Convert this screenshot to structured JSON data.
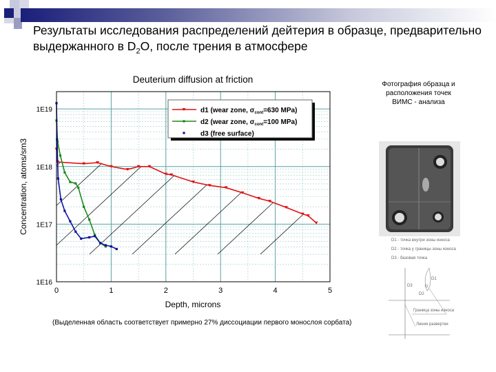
{
  "slide": {
    "title_part1": "Результаты исследования распределений дейтерия в образце, предварительно выдержанного в D",
    "title_sub": "2",
    "title_part2": "O, после трения в атмосфере",
    "note": "(Выделенная область соответствует примерно 27% диссоциации первого монослоя сорбата)",
    "photo_caption": "Фотография образца и расположения точек ВИМС - анализа",
    "diagram_legend": [
      "D1 - точка внутри зоны износа",
      "D2 - точка у границы зоны износа",
      "D3 - базовая точка"
    ],
    "diagram_labels": {
      "d1": "D1",
      "d2": "D2",
      "d3": "D3",
      "boundary": "Граница зоны износа",
      "scan": "Линия развертки"
    },
    "accent_color": "#1a1f7a"
  },
  "chart_data": {
    "type": "line",
    "title": "Deuterium diffusion at friction",
    "xlabel": "Depth, microns",
    "ylabel": "Concentration, atoms/sm3",
    "xlim": [
      0,
      5
    ],
    "ylim": [
      1e+16,
      2e+19
    ],
    "yscale": "log",
    "grid": true,
    "legend_position": "top-right",
    "x_ticks": [
      "0",
      "1",
      "2",
      "3",
      "4",
      "5"
    ],
    "y_ticks": [
      "1E16",
      "1E17",
      "1E18",
      "1E19"
    ],
    "annotation": "hatched region below d1 curve",
    "series": [
      {
        "name": "d1 (wear zone, σcont=630 MPa)",
        "legend_main": "d1 (wear zone, σ",
        "legend_sub": "cont",
        "legend_tail": "=630 MPa)",
        "color": "#e01010",
        "marker": "triangle-down",
        "x": [
          0,
          0.02,
          0.5,
          0.75,
          1.0,
          1.3,
          1.5,
          1.7,
          2.0,
          2.1,
          2.5,
          2.8,
          3.1,
          3.4,
          3.7,
          3.9,
          4.2,
          4.5,
          4.6,
          4.75
        ],
        "y": [
          2e+18,
          1.2e+18,
          1.12e+18,
          1.17e+18,
          1e+18,
          8.9e+17,
          1e+18,
          1e+18,
          7.4e+17,
          7.2e+17,
          5.4e+17,
          4.7e+17,
          4.3e+17,
          3.5e+17,
          2.8e+17,
          2.5e+17,
          1.95e+17,
          1.5e+17,
          1.4e+17,
          1.05e+17
        ]
      },
      {
        "name": "d2 (wear zone, σcont=100 MPa)",
        "legend_main": "d2 (wear zone, σ",
        "legend_sub": "cont",
        "legend_tail": "=100 MPa)",
        "color": "#1a8a1a",
        "marker": "square",
        "x": [
          0,
          0.02,
          0.07,
          0.15,
          0.25,
          0.35,
          0.4,
          0.5,
          0.6,
          0.7,
          0.8,
          0.9
        ],
        "y": [
          6.3e+18,
          2.7e+18,
          1.55e+18,
          7.9e+17,
          5.4e+17,
          5.1e+17,
          4.3e+17,
          2e+17,
          1.2e+17,
          6.5e+16,
          4.7e+16,
          4.1e+16
        ]
      },
      {
        "name": "d3 (free surface)",
        "legend_main": "d3 (free surface)",
        "legend_sub": "",
        "legend_tail": "",
        "color": "#1010a0",
        "marker": "square",
        "x": [
          0,
          0.01,
          0.03,
          0.08,
          0.15,
          0.25,
          0.35,
          0.45,
          0.6,
          0.7,
          0.8,
          0.9,
          1.0,
          1.1
        ],
        "y": [
          1.26e+19,
          2.95e+18,
          6.2e+17,
          2.7e+17,
          1.7e+17,
          1.12e+17,
          7.4e+16,
          5.6e+16,
          5.9e+16,
          6.2e+16,
          4.7e+16,
          4.3e+16,
          4.1e+16,
          3.7e+16
        ]
      }
    ]
  }
}
